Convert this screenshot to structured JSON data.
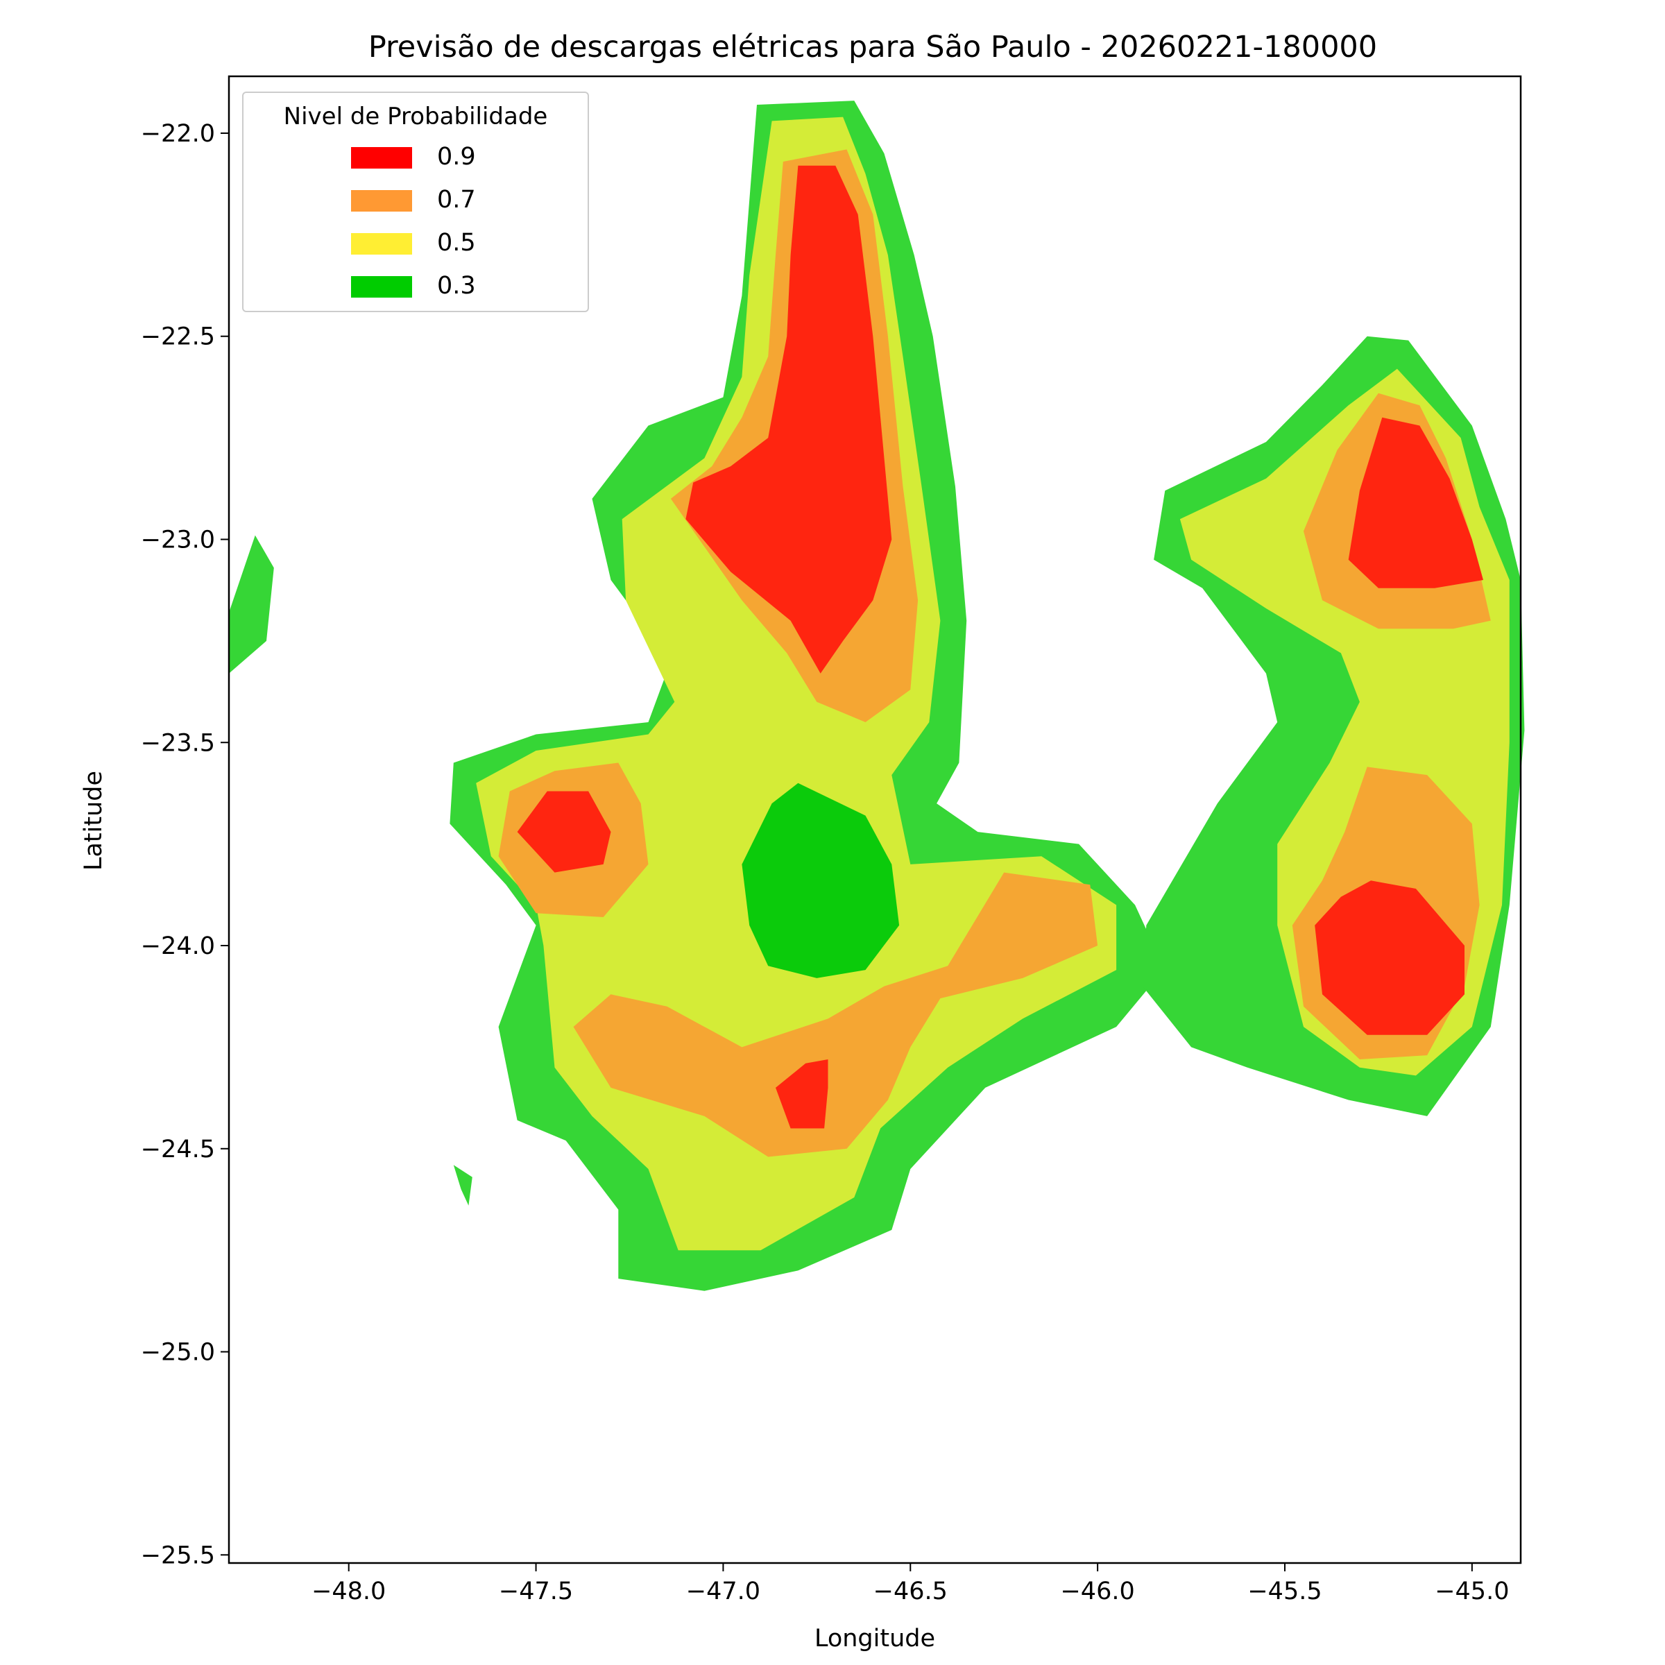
{
  "chart_data": {
    "type": "heatmap",
    "title": "Previsão de descargas elétricas para São Paulo - 20260221-180000",
    "xlabel": "Longitude",
    "ylabel": "Latitude",
    "xlim": [
      -48.32,
      -44.87
    ],
    "ylim": [
      -25.52,
      -21.86
    ],
    "x_ticks": [
      -48.0,
      -47.5,
      -47.0,
      -46.5,
      -46.0,
      -45.5,
      -45.0
    ],
    "x_tick_labels": [
      "−48.0",
      "−47.5",
      "−47.0",
      "−46.5",
      "−46.0",
      "−45.5",
      "−45.0"
    ],
    "y_ticks": [
      -22.0,
      -22.5,
      -23.0,
      -23.5,
      -24.0,
      -24.5,
      -25.0,
      -25.5
    ],
    "y_tick_labels": [
      "−22.0",
      "−22.5",
      "−23.0",
      "−23.5",
      "−24.0",
      "−24.5",
      "−25.0",
      "−25.5"
    ],
    "grid": false,
    "legend": {
      "title": "Nivel de Probabilidade",
      "placement": "top-left",
      "entries": [
        {
          "label": "0.9",
          "color": "#ff0000"
        },
        {
          "label": "0.7",
          "color": "#ff9933"
        },
        {
          "label": "0.5",
          "color": "#ffee33"
        },
        {
          "label": "0.3",
          "color": "#00cc00"
        }
      ]
    },
    "fill_colors": {
      "outer_green": "#36d636",
      "yellow": "#d4ec37",
      "orange": "#f5a633",
      "red": "#ff2510",
      "inner_green": "#0bcb0b"
    },
    "regions": [
      {
        "level": "outer_green",
        "points": [
          [
            -46.91,
            -21.93
          ],
          [
            -46.65,
            -21.92
          ],
          [
            -46.57,
            -22.05
          ],
          [
            -46.49,
            -22.3
          ],
          [
            -46.44,
            -22.5
          ],
          [
            -46.38,
            -22.87
          ],
          [
            -46.35,
            -23.2
          ],
          [
            -46.37,
            -23.55
          ],
          [
            -46.43,
            -23.65
          ],
          [
            -46.32,
            -23.72
          ],
          [
            -46.05,
            -23.75
          ],
          [
            -45.9,
            -23.9
          ],
          [
            -45.85,
            -24.0
          ],
          [
            -45.86,
            -24.1
          ],
          [
            -45.95,
            -24.2
          ],
          [
            -46.3,
            -24.35
          ],
          [
            -46.5,
            -24.55
          ],
          [
            -46.55,
            -24.7
          ],
          [
            -46.8,
            -24.8
          ],
          [
            -47.05,
            -24.85
          ],
          [
            -47.28,
            -24.82
          ],
          [
            -47.28,
            -24.65
          ],
          [
            -47.42,
            -24.48
          ],
          [
            -47.55,
            -24.43
          ],
          [
            -47.6,
            -24.2
          ],
          [
            -47.5,
            -23.95
          ],
          [
            -47.58,
            -23.85
          ],
          [
            -47.73,
            -23.7
          ],
          [
            -47.72,
            -23.55
          ],
          [
            -47.5,
            -23.48
          ],
          [
            -47.2,
            -23.45
          ],
          [
            -47.14,
            -23.3
          ],
          [
            -47.3,
            -23.1
          ],
          [
            -47.35,
            -22.9
          ],
          [
            -47.2,
            -22.72
          ],
          [
            -47.0,
            -22.65
          ],
          [
            -46.95,
            -22.4
          ]
        ]
      },
      {
        "level": "outer_green",
        "points": [
          [
            -45.82,
            -22.88
          ],
          [
            -45.55,
            -22.76
          ],
          [
            -45.4,
            -22.62
          ],
          [
            -45.28,
            -22.5
          ],
          [
            -45.17,
            -22.51
          ],
          [
            -45.0,
            -22.72
          ],
          [
            -44.91,
            -22.95
          ],
          [
            -44.87,
            -23.1
          ],
          [
            -44.86,
            -23.47
          ],
          [
            -44.9,
            -23.9
          ],
          [
            -44.95,
            -24.2
          ],
          [
            -45.12,
            -24.42
          ],
          [
            -45.33,
            -24.38
          ],
          [
            -45.6,
            -24.3
          ],
          [
            -45.75,
            -24.25
          ],
          [
            -45.88,
            -24.1
          ],
          [
            -45.87,
            -23.95
          ],
          [
            -45.68,
            -23.65
          ],
          [
            -45.52,
            -23.45
          ],
          [
            -45.55,
            -23.33
          ],
          [
            -45.72,
            -23.12
          ],
          [
            -45.85,
            -23.05
          ]
        ]
      },
      {
        "level": "outer_green",
        "points": [
          [
            -48.32,
            -23.18
          ],
          [
            -48.25,
            -22.99
          ],
          [
            -48.2,
            -23.07
          ],
          [
            -48.22,
            -23.25
          ],
          [
            -48.32,
            -23.33
          ]
        ]
      },
      {
        "level": "outer_green",
        "points": [
          [
            -47.72,
            -24.54
          ],
          [
            -47.67,
            -24.57
          ],
          [
            -47.68,
            -24.64
          ],
          [
            -47.7,
            -24.6
          ]
        ]
      },
      {
        "level": "yellow",
        "points": [
          [
            -46.87,
            -21.97
          ],
          [
            -46.68,
            -21.96
          ],
          [
            -46.62,
            -22.1
          ],
          [
            -46.56,
            -22.3
          ],
          [
            -46.52,
            -22.55
          ],
          [
            -46.47,
            -22.87
          ],
          [
            -46.42,
            -23.2
          ],
          [
            -46.45,
            -23.45
          ],
          [
            -46.55,
            -23.58
          ],
          [
            -46.5,
            -23.8
          ],
          [
            -46.15,
            -23.78
          ],
          [
            -45.95,
            -23.9
          ],
          [
            -45.95,
            -24.06
          ],
          [
            -46.2,
            -24.18
          ],
          [
            -46.4,
            -24.3
          ],
          [
            -46.58,
            -24.45
          ],
          [
            -46.65,
            -24.62
          ],
          [
            -46.9,
            -24.75
          ],
          [
            -47.12,
            -24.75
          ],
          [
            -47.2,
            -24.55
          ],
          [
            -47.35,
            -24.42
          ],
          [
            -47.45,
            -24.3
          ],
          [
            -47.48,
            -24.0
          ],
          [
            -47.5,
            -23.9
          ],
          [
            -47.62,
            -23.78
          ],
          [
            -47.66,
            -23.6
          ],
          [
            -47.5,
            -23.52
          ],
          [
            -47.2,
            -23.48
          ],
          [
            -47.13,
            -23.4
          ],
          [
            -47.26,
            -23.15
          ],
          [
            -47.27,
            -22.95
          ],
          [
            -47.05,
            -22.8
          ],
          [
            -46.95,
            -22.6
          ],
          [
            -46.93,
            -22.35
          ]
        ]
      },
      {
        "level": "yellow",
        "points": [
          [
            -45.78,
            -22.95
          ],
          [
            -45.55,
            -22.85
          ],
          [
            -45.33,
            -22.67
          ],
          [
            -45.2,
            -22.58
          ],
          [
            -45.03,
            -22.75
          ],
          [
            -44.98,
            -22.92
          ],
          [
            -44.9,
            -23.1
          ],
          [
            -44.9,
            -23.5
          ],
          [
            -44.92,
            -23.9
          ],
          [
            -45.0,
            -24.2
          ],
          [
            -45.15,
            -24.32
          ],
          [
            -45.3,
            -24.3
          ],
          [
            -45.45,
            -24.2
          ],
          [
            -45.52,
            -23.95
          ],
          [
            -45.52,
            -23.75
          ],
          [
            -45.38,
            -23.55
          ],
          [
            -45.3,
            -23.4
          ],
          [
            -45.35,
            -23.28
          ],
          [
            -45.55,
            -23.17
          ],
          [
            -45.75,
            -23.05
          ]
        ]
      },
      {
        "level": "orange",
        "points": [
          [
            -46.84,
            -22.07
          ],
          [
            -46.67,
            -22.04
          ],
          [
            -46.6,
            -22.2
          ],
          [
            -46.56,
            -22.5
          ],
          [
            -46.52,
            -22.87
          ],
          [
            -46.48,
            -23.15
          ],
          [
            -46.5,
            -23.37
          ],
          [
            -46.62,
            -23.45
          ],
          [
            -46.75,
            -23.4
          ],
          [
            -46.83,
            -23.28
          ],
          [
            -46.95,
            -23.15
          ],
          [
            -47.14,
            -22.9
          ],
          [
            -47.03,
            -22.82
          ],
          [
            -46.95,
            -22.7
          ],
          [
            -46.88,
            -22.55
          ],
          [
            -46.86,
            -22.3
          ]
        ]
      },
      {
        "level": "orange",
        "points": [
          [
            -47.45,
            -23.57
          ],
          [
            -47.28,
            -23.55
          ],
          [
            -47.22,
            -23.65
          ],
          [
            -47.2,
            -23.8
          ],
          [
            -47.32,
            -23.93
          ],
          [
            -47.5,
            -23.92
          ],
          [
            -47.6,
            -23.78
          ],
          [
            -47.57,
            -23.62
          ]
        ]
      },
      {
        "level": "orange",
        "points": [
          [
            -47.4,
            -24.2
          ],
          [
            -47.3,
            -24.35
          ],
          [
            -47.05,
            -24.42
          ],
          [
            -46.88,
            -24.52
          ],
          [
            -46.67,
            -24.5
          ],
          [
            -46.56,
            -24.38
          ],
          [
            -46.5,
            -24.25
          ],
          [
            -46.42,
            -24.13
          ],
          [
            -46.2,
            -24.08
          ],
          [
            -46.0,
            -24.0
          ],
          [
            -46.02,
            -23.85
          ],
          [
            -46.25,
            -23.82
          ],
          [
            -46.4,
            -24.05
          ],
          [
            -46.57,
            -24.1
          ],
          [
            -46.72,
            -24.18
          ],
          [
            -46.95,
            -24.25
          ],
          [
            -47.15,
            -24.15
          ],
          [
            -47.3,
            -24.12
          ]
        ]
      },
      {
        "level": "orange",
        "points": [
          [
            -45.25,
            -22.64
          ],
          [
            -45.14,
            -22.67
          ],
          [
            -45.07,
            -22.8
          ],
          [
            -45.0,
            -23.0
          ],
          [
            -44.95,
            -23.2
          ],
          [
            -45.05,
            -23.22
          ],
          [
            -45.25,
            -23.22
          ],
          [
            -45.4,
            -23.15
          ],
          [
            -45.45,
            -22.98
          ],
          [
            -45.36,
            -22.78
          ]
        ]
      },
      {
        "level": "orange",
        "points": [
          [
            -45.28,
            -23.56
          ],
          [
            -45.12,
            -23.58
          ],
          [
            -45.0,
            -23.7
          ],
          [
            -44.98,
            -23.9
          ],
          [
            -45.02,
            -24.1
          ],
          [
            -45.12,
            -24.27
          ],
          [
            -45.3,
            -24.28
          ],
          [
            -45.45,
            -24.15
          ],
          [
            -45.48,
            -23.95
          ],
          [
            -45.4,
            -23.84
          ],
          [
            -45.34,
            -23.72
          ]
        ]
      },
      {
        "level": "red",
        "points": [
          [
            -46.8,
            -22.08
          ],
          [
            -46.7,
            -22.08
          ],
          [
            -46.64,
            -22.2
          ],
          [
            -46.6,
            -22.5
          ],
          [
            -46.56,
            -22.9
          ],
          [
            -46.55,
            -23.0
          ],
          [
            -46.6,
            -23.15
          ],
          [
            -46.68,
            -23.25
          ],
          [
            -46.74,
            -23.33
          ],
          [
            -46.82,
            -23.2
          ],
          [
            -46.98,
            -23.08
          ],
          [
            -47.1,
            -22.95
          ],
          [
            -47.08,
            -22.86
          ],
          [
            -46.98,
            -22.82
          ],
          [
            -46.88,
            -22.75
          ],
          [
            -46.83,
            -22.5
          ],
          [
            -46.82,
            -22.3
          ]
        ]
      },
      {
        "level": "red",
        "points": [
          [
            -47.47,
            -23.62
          ],
          [
            -47.36,
            -23.62
          ],
          [
            -47.3,
            -23.72
          ],
          [
            -47.32,
            -23.8
          ],
          [
            -47.45,
            -23.82
          ],
          [
            -47.55,
            -23.72
          ]
        ]
      },
      {
        "level": "red",
        "points": [
          [
            -46.78,
            -24.29
          ],
          [
            -46.72,
            -24.28
          ],
          [
            -46.72,
            -24.35
          ],
          [
            -46.73,
            -24.45
          ],
          [
            -46.82,
            -24.45
          ],
          [
            -46.86,
            -24.35
          ]
        ]
      },
      {
        "level": "red",
        "points": [
          [
            -45.24,
            -22.7
          ],
          [
            -45.14,
            -22.72
          ],
          [
            -45.06,
            -22.85
          ],
          [
            -45.0,
            -23.0
          ],
          [
            -44.97,
            -23.1
          ],
          [
            -45.1,
            -23.12
          ],
          [
            -45.25,
            -23.12
          ],
          [
            -45.33,
            -23.05
          ],
          [
            -45.3,
            -22.88
          ]
        ]
      },
      {
        "level": "red",
        "points": [
          [
            -45.27,
            -23.84
          ],
          [
            -45.15,
            -23.86
          ],
          [
            -45.02,
            -24.0
          ],
          [
            -45.02,
            -24.12
          ],
          [
            -45.12,
            -24.22
          ],
          [
            -45.28,
            -24.22
          ],
          [
            -45.4,
            -24.12
          ],
          [
            -45.42,
            -23.95
          ],
          [
            -45.35,
            -23.88
          ]
        ]
      },
      {
        "level": "inner_green",
        "points": [
          [
            -46.8,
            -23.6
          ],
          [
            -46.62,
            -23.68
          ],
          [
            -46.55,
            -23.8
          ],
          [
            -46.53,
            -23.95
          ],
          [
            -46.62,
            -24.06
          ],
          [
            -46.75,
            -24.08
          ],
          [
            -46.88,
            -24.05
          ],
          [
            -46.93,
            -23.95
          ],
          [
            -46.95,
            -23.8
          ],
          [
            -46.87,
            -23.65
          ]
        ]
      }
    ]
  }
}
